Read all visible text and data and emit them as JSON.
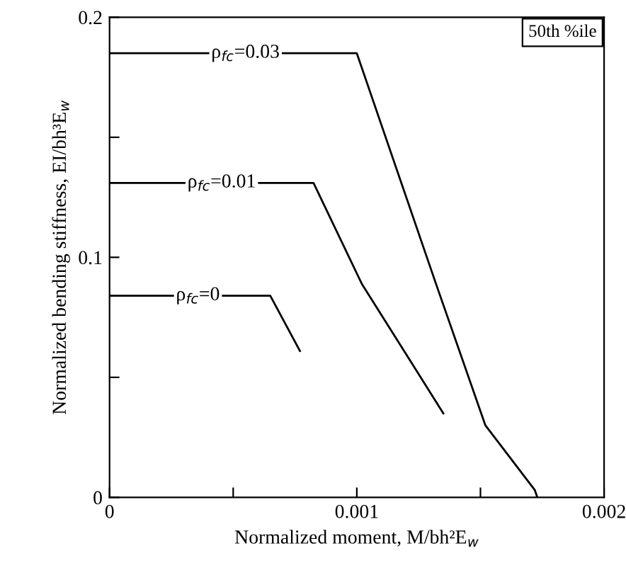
{
  "chart_data": {
    "type": "line",
    "xlabel": "Normalized moment, M/bh²E$_{w}$",
    "ylabel": "Normalized bending stiffness, EI/bh³E$_{w}$",
    "annotations": [
      "50th %ile"
    ],
    "series": [
      {
        "name": "ρ$_{fc}$=0.03",
        "color": "#000000",
        "x": [
          0,
          0.001,
          0.00132,
          0.00152,
          0.00172,
          0.00173
        ],
        "values": [
          0.185,
          0.185,
          0.089,
          0.03,
          0.003,
          0
        ]
      },
      {
        "name": "ρ$_{fc}$=0.01",
        "color": "#000000",
        "x": [
          0,
          0.000825,
          0.00102,
          0.00135
        ],
        "values": [
          0.131,
          0.131,
          0.089,
          0.035
        ]
      },
      {
        "name": "ρ$_{fc}$=0",
        "color": "#000000",
        "x": [
          0,
          0.00065,
          0.00077
        ],
        "values": [
          0.084,
          0.084,
          0.061
        ]
      }
    ],
    "xlim": [
      0,
      0.002
    ],
    "ylim": [
      0,
      0.2
    ],
    "xticks": [
      0,
      {
        "value": 0.0005,
        "label": null
      },
      0.001,
      {
        "value": 0.0015,
        "label": null
      },
      0.002
    ],
    "yticks": [
      0,
      {
        "value": 0.05,
        "label": null
      },
      0.1,
      {
        "value": 0.15,
        "label": null
      },
      0.2
    ],
    "grid": false,
    "legend": false,
    "marker": "none",
    "line_style": "solid"
  }
}
